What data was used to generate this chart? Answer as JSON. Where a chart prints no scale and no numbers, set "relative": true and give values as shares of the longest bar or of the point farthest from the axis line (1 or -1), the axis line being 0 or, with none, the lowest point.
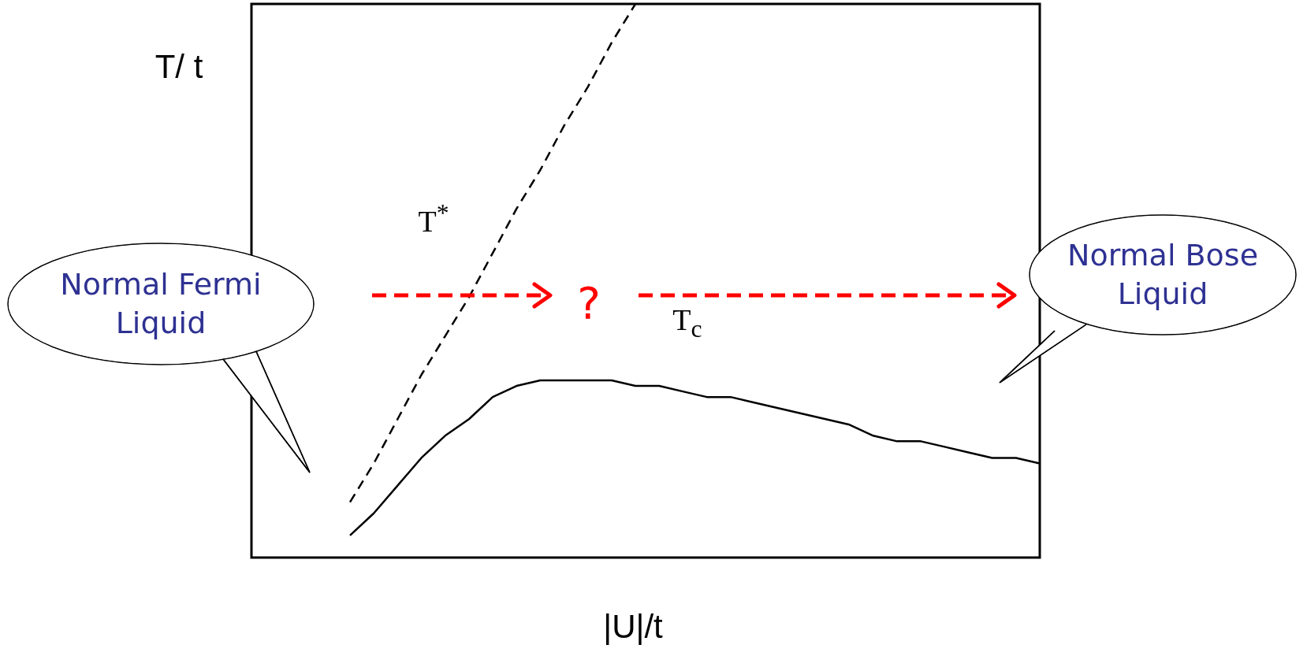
{
  "chart_data": {
    "type": "line",
    "relative": true,
    "xlabel": "|U|/t",
    "ylabel": "T/ t",
    "legend": false,
    "marker": "none",
    "categories": [
      null,
      null,
      null,
      null,
      null,
      null,
      null,
      null,
      null,
      null,
      null,
      null,
      null,
      null,
      null,
      null,
      null,
      null,
      null,
      null,
      null,
      null,
      null,
      null,
      null,
      null,
      null,
      null,
      null,
      null
    ],
    "series": [
      {
        "color": "#000000",
        "line_style": "dashed",
        "values": [
          0.1,
          0.17,
          0.25,
          0.33,
          0.4,
          0.47,
          0.55,
          0.63,
          0.7,
          0.78,
          0.85,
          0.93,
          1.0,
          null,
          null,
          null,
          null,
          null,
          null,
          null,
          null,
          null,
          null,
          null,
          null,
          null,
          null,
          null,
          null,
          null
        ]
      },
      {
        "color": "#000000",
        "line_style": "solid",
        "values": [
          0.04,
          0.08,
          0.13,
          0.18,
          0.22,
          0.25,
          0.29,
          0.31,
          0.32,
          0.32,
          0.32,
          0.32,
          0.31,
          0.31,
          0.3,
          0.29,
          0.29,
          0.28,
          0.27,
          0.26,
          0.25,
          0.24,
          0.22,
          0.21,
          0.21,
          0.2,
          0.19,
          0.18,
          0.18,
          0.17
        ]
      }
    ],
    "annotations": [
      "T$^{*}$",
      "T$_{c}$",
      "?",
      "Normal Fermi Liquid",
      "Normal Bose Liquid"
    ]
  }
}
